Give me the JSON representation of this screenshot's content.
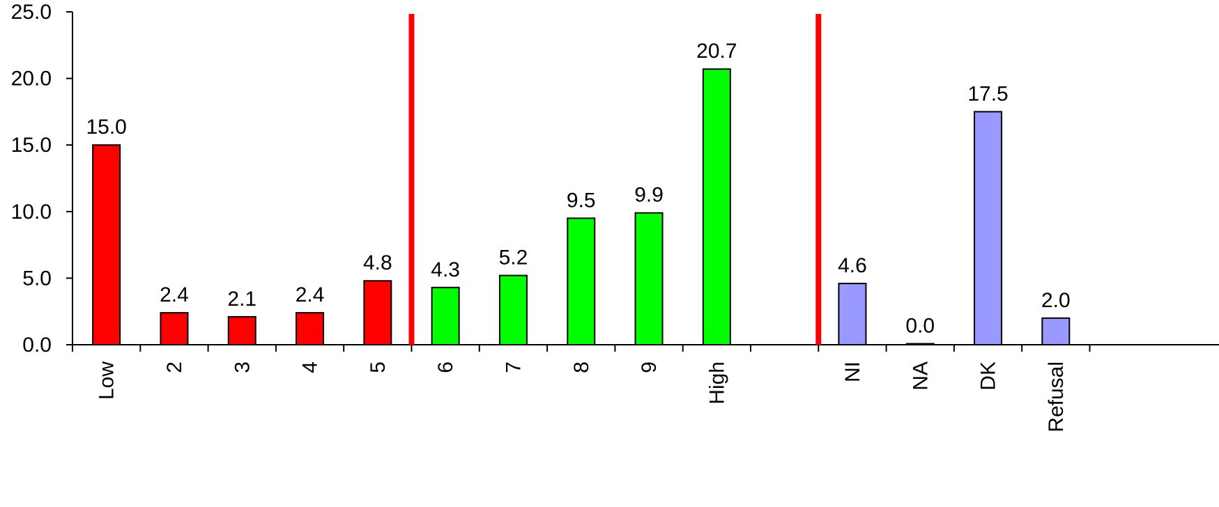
{
  "chart_data": {
    "type": "bar",
    "categories": [
      "Low",
      "2",
      "3",
      "4",
      "5",
      "6",
      "7",
      "8",
      "9",
      "High",
      "",
      "NI",
      "NA",
      "DK",
      "Refusal"
    ],
    "values": [
      15.0,
      2.4,
      2.1,
      2.4,
      4.8,
      4.3,
      5.2,
      9.5,
      9.9,
      20.7,
      null,
      4.6,
      0.0,
      17.5,
      2.0
    ],
    "value_labels": [
      "15.0",
      "2.4",
      "2.1",
      "2.4",
      "4.8",
      "4.3",
      "5.2",
      "9.5",
      "9.9",
      "20.7",
      "",
      "4.6",
      "0.0",
      "17.5",
      "2.0"
    ],
    "bar_colors": [
      "#ff0000",
      "#ff0000",
      "#ff0000",
      "#ff0000",
      "#ff0000",
      "#00ff00",
      "#00ff00",
      "#00ff00",
      "#00ff00",
      "#00ff00",
      "",
      "#9999ff",
      "#9999ff",
      "#9999ff",
      "#9999ff"
    ],
    "yticks": [
      "0.0",
      "5.0",
      "10.0",
      "15.0",
      "20.0",
      "25.0"
    ],
    "ylim": [
      0,
      25
    ],
    "separator_color": "#ff0000",
    "separators_after_category": [
      4,
      10
    ],
    "grid": false,
    "legend": "none",
    "title": "",
    "xlabel": "",
    "ylabel": ""
  }
}
